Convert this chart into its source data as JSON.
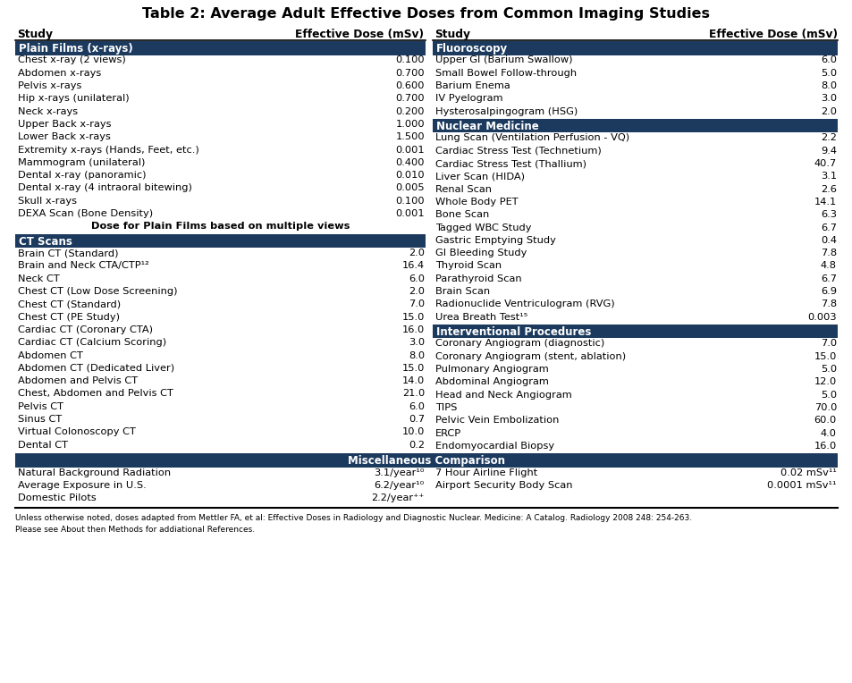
{
  "title": "Table 2: Average Adult Effective Doses from Common Imaging Studies",
  "section_bg": "#1C3A5E",
  "section_fg": "#FFFFFF",
  "row_fg": "#000000",
  "footnote_line1": "Unless otherwise noted, doses adapted from Mettler FA, et al: Effective Doses in Radiology and Diagnostic Nuclear. Medicine: A Catalog. Radiology 2008 248: 254-263.",
  "footnote_line2": "Please see About then Methods for addiational References.",
  "left_col_header": [
    "Study",
    "Effective Dose (mSv)"
  ],
  "right_col_header": [
    "Study",
    "Effective Dose (mSv)"
  ],
  "left_section1_title": "Plain Films (x-rays)",
  "left_section1_rows": [
    [
      "Chest x-ray (2 views)",
      "0.100"
    ],
    [
      "Abdomen x-rays",
      "0.700"
    ],
    [
      "Pelvis x-rays",
      "0.600"
    ],
    [
      "Hip x-rays (unilateral)",
      "0.700"
    ],
    [
      "Neck x-rays",
      "0.200"
    ],
    [
      "Upper Back x-rays",
      "1.000"
    ],
    [
      "Lower Back x-rays",
      "1.500"
    ],
    [
      "Extremity x-rays (Hands, Feet, etc.)",
      "0.001"
    ],
    [
      "Mammogram (unilateral)",
      "0.400"
    ],
    [
      "Dental x-ray (panoramic)",
      "0.010"
    ],
    [
      "Dental x-ray (4 intraoral bitewing)",
      "0.005"
    ],
    [
      "Skull x-rays",
      "0.100"
    ],
    [
      "DEXA Scan (Bone Density)",
      "0.001"
    ]
  ],
  "left_note": "Dose for Plain Films based on multiple views",
  "left_section2_title": "CT Scans",
  "left_section2_rows": [
    [
      "Brain CT (Standard)",
      "2.0"
    ],
    [
      "Brain and Neck CTA/CTP¹²",
      "16.4"
    ],
    [
      "Neck CT",
      "6.0"
    ],
    [
      "Chest CT (Low Dose Screening)",
      "2.0"
    ],
    [
      "Chest CT (Standard)",
      "7.0"
    ],
    [
      "Chest CT (PE Study)",
      "15.0"
    ],
    [
      "Cardiac CT (Coronary CTA)",
      "16.0"
    ],
    [
      "Cardiac CT (Calcium Scoring)",
      "3.0"
    ],
    [
      "Abdomen CT",
      "8.0"
    ],
    [
      "Abdomen CT (Dedicated Liver)",
      "15.0"
    ],
    [
      "Abdomen and Pelvis CT",
      "14.0"
    ],
    [
      "Chest, Abdomen and Pelvis CT",
      "21.0"
    ],
    [
      "Pelvis CT",
      "6.0"
    ],
    [
      "Sinus CT",
      "0.7"
    ],
    [
      "Virtual Colonoscopy CT",
      "10.0"
    ],
    [
      "Dental CT",
      "0.2"
    ]
  ],
  "right_section1_title": "Fluoroscopy",
  "right_section1_rows": [
    [
      "Upper GI (Barium Swallow)",
      "6.0"
    ],
    [
      "Small Bowel Follow-through",
      "5.0"
    ],
    [
      "Barium Enema",
      "8.0"
    ],
    [
      "IV Pyelogram",
      "3.0"
    ],
    [
      "Hysterosalpingogram (HSG)",
      "2.0"
    ]
  ],
  "right_section2_title": "Nuclear Medicine",
  "right_section2_rows": [
    [
      "Lung Scan (Ventilation Perfusion - VQ)",
      "2.2"
    ],
    [
      "Cardiac Stress Test (Technetium)",
      "9.4"
    ],
    [
      "Cardiac Stress Test (Thallium)",
      "40.7"
    ],
    [
      "Liver Scan (HIDA)",
      "3.1"
    ],
    [
      "Renal Scan",
      "2.6"
    ],
    [
      "Whole Body PET",
      "14.1"
    ],
    [
      "Bone Scan",
      "6.3"
    ],
    [
      "Tagged WBC Study",
      "6.7"
    ],
    [
      "Gastric Emptying Study",
      "0.4"
    ],
    [
      "GI Bleeding Study",
      "7.8"
    ],
    [
      "Thyroid Scan",
      "4.8"
    ],
    [
      "Parathyroid Scan",
      "6.7"
    ],
    [
      "Brain Scan",
      "6.9"
    ],
    [
      "Radionuclide Ventriculogram (RVG)",
      "7.8"
    ],
    [
      "Urea Breath Test¹⁵",
      "0.003"
    ]
  ],
  "right_section3_title": "Interventional Procedures",
  "right_section3_rows": [
    [
      "Coronary Angiogram (diagnostic)",
      "7.0"
    ],
    [
      "Coronary Angiogram (stent, ablation)",
      "15.0"
    ],
    [
      "Pulmonary Angiogram",
      "5.0"
    ],
    [
      "Abdominal Angiogram",
      "12.0"
    ],
    [
      "Head and Neck Angiogram",
      "5.0"
    ],
    [
      "TIPS",
      "70.0"
    ],
    [
      "Pelvic Vein Embolization",
      "60.0"
    ],
    [
      "ERCP",
      "4.0"
    ],
    [
      "Endomyocardial Biopsy",
      "16.0"
    ]
  ],
  "misc_title": "Miscellaneous Comparison",
  "misc_left_rows": [
    [
      "Natural Background Radiation",
      "3.1/year¹⁰"
    ],
    [
      "Average Exposure in U.S.",
      "6.2/year¹⁰"
    ],
    [
      "Domestic Pilots",
      "2.2/year⁺⁺"
    ]
  ],
  "misc_right_rows": [
    [
      "7 Hour Airline Flight",
      "0.02 mSv¹¹"
    ],
    [
      "Airport Security Body Scan",
      "0.0001 mSv¹¹"
    ]
  ]
}
